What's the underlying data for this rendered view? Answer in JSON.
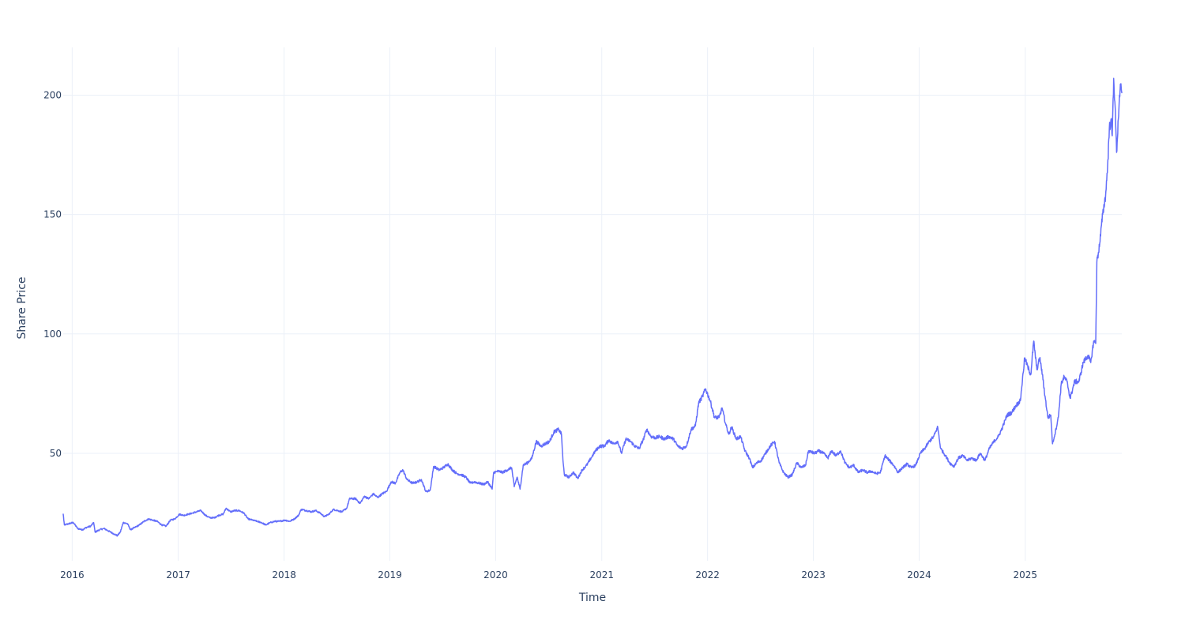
{
  "chart_data": {
    "type": "line",
    "title": "",
    "xlabel": "Time",
    "ylabel": "Share Price",
    "x_range": [
      "2015-12-01",
      "2025-11-30"
    ],
    "ylim": [
      5,
      220
    ],
    "x_ticks": [
      {
        "date": "2016-01-01",
        "label": "2016"
      },
      {
        "date": "2017-01-01",
        "label": "2017"
      },
      {
        "date": "2018-01-01",
        "label": "2018"
      },
      {
        "date": "2019-01-01",
        "label": "2019"
      },
      {
        "date": "2020-01-01",
        "label": "2020"
      },
      {
        "date": "2021-01-01",
        "label": "2021"
      },
      {
        "date": "2022-01-01",
        "label": "2022"
      },
      {
        "date": "2023-01-01",
        "label": "2023"
      },
      {
        "date": "2024-01-01",
        "label": "2024"
      },
      {
        "date": "2025-01-01",
        "label": "2025"
      }
    ],
    "y_ticks": [
      {
        "value": 50,
        "label": "50"
      },
      {
        "value": 100,
        "label": "100"
      },
      {
        "value": 150,
        "label": "150"
      },
      {
        "value": 200,
        "label": "200"
      }
    ],
    "grid": true,
    "legend": "none",
    "series": [
      {
        "color": "#636efa",
        "points": [
          [
            "2015-12-01",
            24.5
          ],
          [
            "2015-12-05",
            20
          ],
          [
            "2015-12-20",
            20.5
          ],
          [
            "2016-01-05",
            21
          ],
          [
            "2016-01-20",
            18.5
          ],
          [
            "2016-02-05",
            18
          ],
          [
            "2016-02-20",
            19
          ],
          [
            "2016-03-05",
            19.5
          ],
          [
            "2016-03-15",
            21
          ],
          [
            "2016-03-20",
            17
          ],
          [
            "2016-04-05",
            18
          ],
          [
            "2016-04-20",
            18.5
          ],
          [
            "2016-05-05",
            17.5
          ],
          [
            "2016-05-20",
            16.5
          ],
          [
            "2016-06-05",
            15.5
          ],
          [
            "2016-06-15",
            17
          ],
          [
            "2016-06-25",
            21
          ],
          [
            "2016-07-10",
            20.5
          ],
          [
            "2016-07-20",
            18
          ],
          [
            "2016-08-05",
            19
          ],
          [
            "2016-08-20",
            20
          ],
          [
            "2016-09-05",
            21.5
          ],
          [
            "2016-09-20",
            22.5
          ],
          [
            "2016-10-05",
            22
          ],
          [
            "2016-10-20",
            21.5
          ],
          [
            "2016-11-05",
            20
          ],
          [
            "2016-11-20",
            19.5
          ],
          [
            "2016-12-05",
            22
          ],
          [
            "2016-12-20",
            22.5
          ],
          [
            "2017-01-05",
            24.5
          ],
          [
            "2017-01-20",
            24
          ],
          [
            "2017-02-05",
            24.5
          ],
          [
            "2017-02-20",
            25
          ],
          [
            "2017-03-05",
            25.5
          ],
          [
            "2017-03-20",
            26
          ],
          [
            "2017-04-05",
            24
          ],
          [
            "2017-04-20",
            23
          ],
          [
            "2017-05-05",
            23
          ],
          [
            "2017-05-20",
            24
          ],
          [
            "2017-06-05",
            24.5
          ],
          [
            "2017-06-15",
            27
          ],
          [
            "2017-06-30",
            25.5
          ],
          [
            "2017-07-15",
            26
          ],
          [
            "2017-07-30",
            26
          ],
          [
            "2017-08-15",
            25
          ],
          [
            "2017-08-30",
            22.5
          ],
          [
            "2017-09-15",
            22
          ],
          [
            "2017-09-30",
            21.5
          ],
          [
            "2017-10-15",
            21
          ],
          [
            "2017-10-30",
            20
          ],
          [
            "2017-11-15",
            21
          ],
          [
            "2017-11-30",
            21.5
          ],
          [
            "2017-12-15",
            21.5
          ],
          [
            "2018-01-05",
            22
          ],
          [
            "2018-01-20",
            21.5
          ],
          [
            "2018-02-05",
            22.5
          ],
          [
            "2018-02-20",
            24
          ],
          [
            "2018-03-01",
            26.5
          ],
          [
            "2018-03-20",
            26
          ],
          [
            "2018-04-05",
            25.5
          ],
          [
            "2018-04-20",
            26
          ],
          [
            "2018-05-05",
            25
          ],
          [
            "2018-05-20",
            23.5
          ],
          [
            "2018-06-05",
            24.5
          ],
          [
            "2018-06-20",
            26.5
          ],
          [
            "2018-07-05",
            26
          ],
          [
            "2018-07-20",
            25.5
          ],
          [
            "2018-08-05",
            27
          ],
          [
            "2018-08-15",
            31
          ],
          [
            "2018-09-05",
            31
          ],
          [
            "2018-09-20",
            29
          ],
          [
            "2018-10-05",
            32
          ],
          [
            "2018-10-20",
            31
          ],
          [
            "2018-11-05",
            33
          ],
          [
            "2018-11-20",
            31.5
          ],
          [
            "2018-12-05",
            33
          ],
          [
            "2018-12-20",
            34
          ],
          [
            "2019-01-05",
            38
          ],
          [
            "2019-01-20",
            37.5
          ],
          [
            "2019-02-05",
            42
          ],
          [
            "2019-02-15",
            43
          ],
          [
            "2019-03-01",
            39
          ],
          [
            "2019-03-20",
            37.5
          ],
          [
            "2019-04-05",
            38
          ],
          [
            "2019-04-20",
            39
          ],
          [
            "2019-05-05",
            34
          ],
          [
            "2019-05-20",
            34.5
          ],
          [
            "2019-06-01",
            44.5
          ],
          [
            "2019-06-20",
            43
          ],
          [
            "2019-07-05",
            44
          ],
          [
            "2019-07-20",
            45.5
          ],
          [
            "2019-08-05",
            43
          ],
          [
            "2019-08-20",
            41.5
          ],
          [
            "2019-09-05",
            41
          ],
          [
            "2019-09-20",
            40
          ],
          [
            "2019-10-05",
            37.5
          ],
          [
            "2019-10-20",
            38
          ],
          [
            "2019-11-05",
            37.5
          ],
          [
            "2019-11-20",
            37
          ],
          [
            "2019-12-05",
            38
          ],
          [
            "2019-12-20",
            35
          ],
          [
            "2019-12-25",
            42
          ],
          [
            "2020-01-10",
            42.5
          ],
          [
            "2020-01-25",
            42
          ],
          [
            "2020-02-10",
            43
          ],
          [
            "2020-02-25",
            44
          ],
          [
            "2020-03-05",
            36
          ],
          [
            "2020-03-15",
            40
          ],
          [
            "2020-03-25",
            35
          ],
          [
            "2020-04-05",
            45
          ],
          [
            "2020-04-20",
            46
          ],
          [
            "2020-05-05",
            48
          ],
          [
            "2020-05-20",
            55
          ],
          [
            "2020-06-05",
            53
          ],
          [
            "2020-06-20",
            54
          ],
          [
            "2020-07-05",
            55
          ],
          [
            "2020-07-20",
            59
          ],
          [
            "2020-08-05",
            60
          ],
          [
            "2020-08-15",
            58
          ],
          [
            "2020-08-20",
            47
          ],
          [
            "2020-08-25",
            41
          ],
          [
            "2020-09-10",
            40
          ],
          [
            "2020-09-25",
            42
          ],
          [
            "2020-10-10",
            39.5
          ],
          [
            "2020-10-25",
            43
          ],
          [
            "2020-11-10",
            45
          ],
          [
            "2020-11-25",
            48
          ],
          [
            "2020-12-10",
            51
          ],
          [
            "2020-12-25",
            53
          ],
          [
            "2021-01-10",
            53
          ],
          [
            "2021-01-25",
            55.5
          ],
          [
            "2021-02-10",
            54
          ],
          [
            "2021-02-25",
            55
          ],
          [
            "2021-03-10",
            50
          ],
          [
            "2021-03-25",
            56
          ],
          [
            "2021-04-10",
            55
          ],
          [
            "2021-04-25",
            53
          ],
          [
            "2021-05-10",
            52
          ],
          [
            "2021-05-25",
            56
          ],
          [
            "2021-06-05",
            60
          ],
          [
            "2021-06-20",
            57
          ],
          [
            "2021-07-05",
            56.5
          ],
          [
            "2021-07-20",
            57
          ],
          [
            "2021-08-05",
            56
          ],
          [
            "2021-08-20",
            57
          ],
          [
            "2021-09-05",
            56
          ],
          [
            "2021-09-20",
            53
          ],
          [
            "2021-10-05",
            52
          ],
          [
            "2021-10-20",
            53
          ],
          [
            "2021-11-05",
            60
          ],
          [
            "2021-11-20",
            61.5
          ],
          [
            "2021-12-01",
            71
          ],
          [
            "2021-12-15",
            74
          ],
          [
            "2021-12-25",
            77
          ],
          [
            "2022-01-10",
            72
          ],
          [
            "2022-01-25",
            65
          ],
          [
            "2022-02-10",
            65
          ],
          [
            "2022-02-20",
            69
          ],
          [
            "2022-03-05",
            62
          ],
          [
            "2022-03-15",
            58
          ],
          [
            "2022-03-25",
            61
          ],
          [
            "2022-04-10",
            56
          ],
          [
            "2022-04-25",
            57
          ],
          [
            "2022-05-10",
            51
          ],
          [
            "2022-05-25",
            48
          ],
          [
            "2022-06-05",
            44
          ],
          [
            "2022-06-20",
            46
          ],
          [
            "2022-07-05",
            47
          ],
          [
            "2022-07-20",
            50
          ],
          [
            "2022-08-05",
            53
          ],
          [
            "2022-08-20",
            55
          ],
          [
            "2022-09-05",
            46
          ],
          [
            "2022-09-20",
            42
          ],
          [
            "2022-10-05",
            40
          ],
          [
            "2022-10-20",
            41
          ],
          [
            "2022-11-05",
            46
          ],
          [
            "2022-11-20",
            44
          ],
          [
            "2022-12-05",
            45
          ],
          [
            "2022-12-15",
            51
          ],
          [
            "2023-01-05",
            50
          ],
          [
            "2023-01-20",
            51
          ],
          [
            "2023-02-05",
            50
          ],
          [
            "2023-02-20",
            48
          ],
          [
            "2023-03-05",
            51
          ],
          [
            "2023-03-20",
            49
          ],
          [
            "2023-04-05",
            51
          ],
          [
            "2023-04-20",
            46
          ],
          [
            "2023-05-05",
            44
          ],
          [
            "2023-05-20",
            45
          ],
          [
            "2023-06-05",
            42
          ],
          [
            "2023-06-20",
            43
          ],
          [
            "2023-07-05",
            42
          ],
          [
            "2023-07-20",
            42.5
          ],
          [
            "2023-08-05",
            41.5
          ],
          [
            "2023-08-20",
            42
          ],
          [
            "2023-09-05",
            49
          ],
          [
            "2023-09-20",
            47
          ],
          [
            "2023-10-05",
            45
          ],
          [
            "2023-10-20",
            42
          ],
          [
            "2023-11-05",
            44
          ],
          [
            "2023-11-20",
            45.5
          ],
          [
            "2023-12-05",
            44
          ],
          [
            "2023-12-20",
            45
          ],
          [
            "2024-01-05",
            50
          ],
          [
            "2024-01-20",
            52
          ],
          [
            "2024-02-05",
            55
          ],
          [
            "2024-02-20",
            57
          ],
          [
            "2024-03-05",
            61
          ],
          [
            "2024-03-15",
            52
          ],
          [
            "2024-04-01",
            49
          ],
          [
            "2024-04-15",
            46
          ],
          [
            "2024-04-30",
            44.5
          ],
          [
            "2024-05-15",
            48
          ],
          [
            "2024-05-30",
            49
          ],
          [
            "2024-06-15",
            47
          ],
          [
            "2024-06-30",
            48
          ],
          [
            "2024-07-15",
            47
          ],
          [
            "2024-07-30",
            50
          ],
          [
            "2024-08-15",
            47
          ],
          [
            "2024-08-30",
            52
          ],
          [
            "2024-09-15",
            55
          ],
          [
            "2024-09-30",
            57
          ],
          [
            "2024-10-15",
            61
          ],
          [
            "2024-10-30",
            66
          ],
          [
            "2024-11-15",
            67
          ],
          [
            "2024-11-30",
            70
          ],
          [
            "2024-12-15",
            72
          ],
          [
            "2024-12-30",
            90
          ],
          [
            "2025-01-10",
            86
          ],
          [
            "2025-01-20",
            83
          ],
          [
            "2025-01-30",
            97
          ],
          [
            "2025-02-10",
            85
          ],
          [
            "2025-02-20",
            90
          ],
          [
            "2025-03-01",
            83
          ],
          [
            "2025-03-10",
            74
          ],
          [
            "2025-03-20",
            65
          ],
          [
            "2025-03-30",
            66
          ],
          [
            "2025-04-05",
            54
          ],
          [
            "2025-04-15",
            59
          ],
          [
            "2025-04-25",
            65
          ],
          [
            "2025-05-05",
            79
          ],
          [
            "2025-05-15",
            82
          ],
          [
            "2025-05-25",
            80
          ],
          [
            "2025-06-05",
            73
          ],
          [
            "2025-06-20",
            80
          ],
          [
            "2025-07-05",
            80
          ],
          [
            "2025-07-20",
            88
          ],
          [
            "2025-08-05",
            91
          ],
          [
            "2025-08-15",
            88
          ],
          [
            "2025-08-25",
            97
          ],
          [
            "2025-09-01",
            96
          ],
          [
            "2025-09-05",
            130
          ],
          [
            "2025-09-15",
            138
          ],
          [
            "2025-09-25",
            150
          ],
          [
            "2025-10-05",
            158
          ],
          [
            "2025-10-12",
            170
          ],
          [
            "2025-10-18",
            186
          ],
          [
            "2025-10-24",
            190
          ],
          [
            "2025-10-28",
            183
          ],
          [
            "2025-11-02",
            207
          ],
          [
            "2025-11-07",
            195
          ],
          [
            "2025-11-12",
            176
          ],
          [
            "2025-11-18",
            190
          ],
          [
            "2025-11-22",
            200
          ],
          [
            "2025-11-26",
            203
          ],
          [
            "2025-11-30",
            201
          ]
        ]
      }
    ]
  }
}
